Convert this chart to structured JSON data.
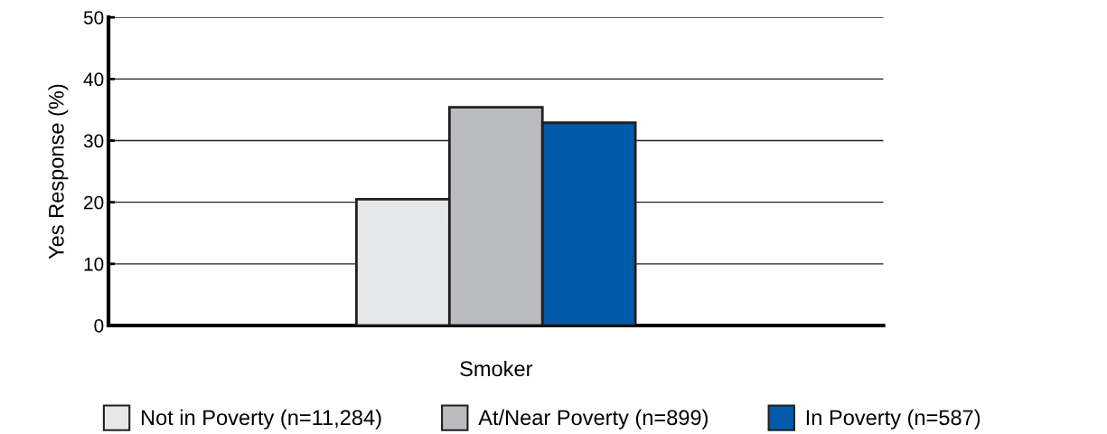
{
  "chart_data": {
    "type": "bar",
    "ylabel": "Yes Response (%)",
    "categories": [
      "Smoker"
    ],
    "series": [
      {
        "name": "Not in Poverty (n=11,284)",
        "color": "#e6e7e9",
        "values": [
          20.5
        ]
      },
      {
        "name": "At/Near Poverty (n=899)",
        "color": "#bbbcc0",
        "values": [
          35.4
        ]
      },
      {
        "name": "In Poverty (n=587)",
        "color": "#005aa9",
        "values": [
          32.9
        ]
      }
    ],
    "ylim": [
      0,
      50
    ],
    "yticks": [
      0,
      10,
      20,
      30,
      40,
      50
    ],
    "grid": "y",
    "legend": "bottom"
  }
}
